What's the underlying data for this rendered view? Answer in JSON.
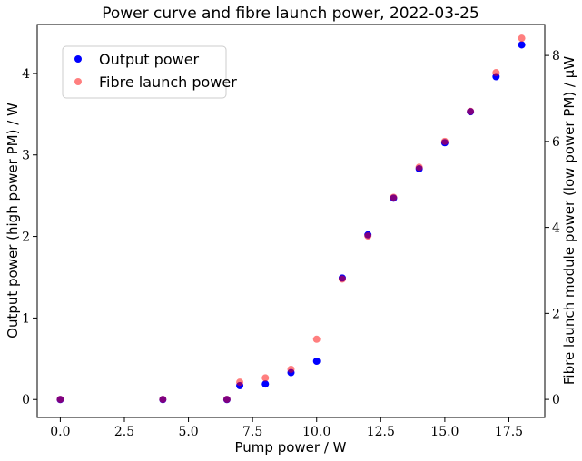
{
  "chart_data": {
    "type": "scatter",
    "title": "Power curve and fibre launch power, 2022-03-25",
    "xlabel": "Pump power / W",
    "ylabel_left": "Output power (high power PM) / W",
    "ylabel_right": "Fibre launch module power (low power PM) / μW",
    "xlim": [
      -0.9,
      18.9
    ],
    "ylim_left": [
      -0.22,
      4.6
    ],
    "ylim_right": [
      -0.42,
      8.72
    ],
    "x_ticks": [
      0.0,
      2.5,
      5.0,
      7.5,
      10.0,
      12.5,
      15.0,
      17.5
    ],
    "x_tick_labels": [
      "0.0",
      "2.5",
      "5.0",
      "7.5",
      "10.0",
      "12.5",
      "15.0",
      "17.5"
    ],
    "y_left_ticks": [
      0,
      1,
      2,
      3,
      4
    ],
    "y_left_tick_labels": [
      "0",
      "1",
      "2",
      "3",
      "4"
    ],
    "y_right_ticks": [
      0,
      2,
      4,
      6,
      8
    ],
    "y_right_tick_labels": [
      "0",
      "2",
      "4",
      "6",
      "8"
    ],
    "legend_position": "upper-left",
    "grid": false,
    "series": [
      {
        "name": "Output power",
        "axis": "left",
        "color": "#0000ff",
        "opacity": 1.0,
        "x": [
          0,
          4,
          6.5,
          7,
          8,
          9,
          10,
          11,
          12,
          13,
          14,
          15,
          16,
          17,
          18
        ],
        "y": [
          0,
          0,
          0,
          0.17,
          0.19,
          0.33,
          0.47,
          1.49,
          2.02,
          2.47,
          2.83,
          3.15,
          3.53,
          3.96,
          4.35
        ]
      },
      {
        "name": "Fibre launch power",
        "axis": "right",
        "color": "#ff0000",
        "opacity": 0.5,
        "x": [
          0,
          4,
          6.5,
          7,
          8,
          9,
          10,
          11,
          12,
          13,
          14,
          15,
          16,
          17,
          18
        ],
        "y": [
          0,
          0,
          0,
          0.4,
          0.5,
          0.7,
          1.4,
          2.8,
          3.8,
          4.7,
          5.4,
          6.0,
          6.7,
          7.6,
          8.4
        ]
      }
    ]
  }
}
